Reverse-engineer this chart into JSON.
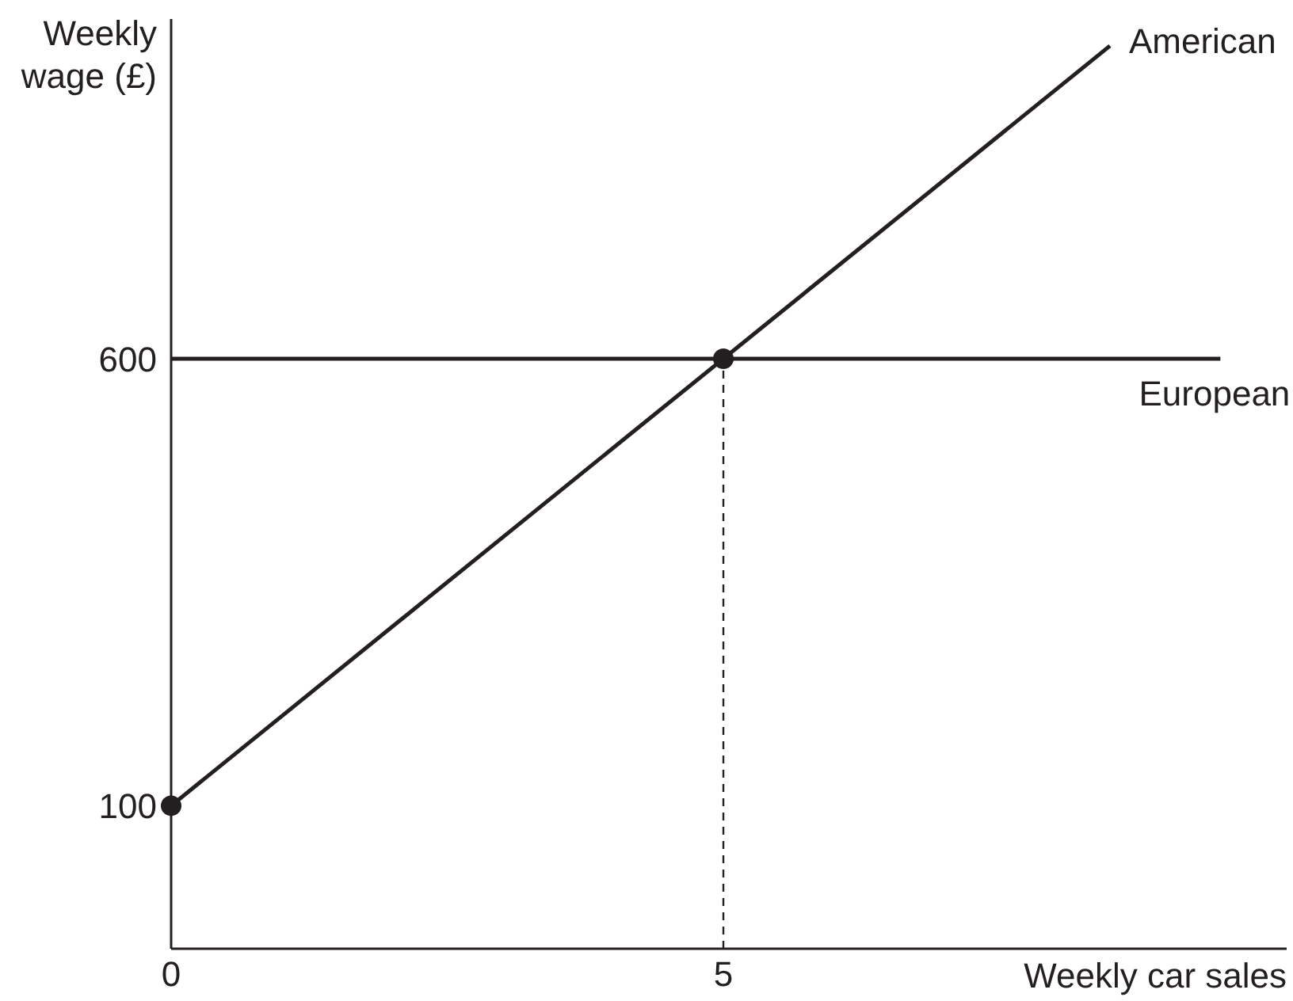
{
  "chart_data": {
    "type": "line",
    "xlabel": "Weekly car sales",
    "ylabel": "Weekly\nwage (£)",
    "xlim": [
      0,
      10.1
    ],
    "ylim": [
      -60,
      980
    ],
    "xticks": [
      0,
      5
    ],
    "yticks": [
      100,
      600
    ],
    "series": [
      {
        "name": "American",
        "color": "#231f20",
        "x": [
          0,
          8.5
        ],
        "values": [
          100,
          950
        ],
        "marker": "none"
      },
      {
        "name": "European",
        "color": "#231f20",
        "x": [
          0,
          9.5
        ],
        "values": [
          600,
          600
        ],
        "marker": "none"
      },
      {
        "color": "#231f20",
        "x": [
          5,
          5
        ],
        "values": [
          -60,
          600
        ],
        "line_style": "dashed",
        "marker": "none"
      },
      {
        "type": "scatter",
        "color": "#231f20",
        "x": [
          0,
          5
        ],
        "values": [
          100,
          600
        ],
        "marker": "circle"
      }
    ]
  }
}
